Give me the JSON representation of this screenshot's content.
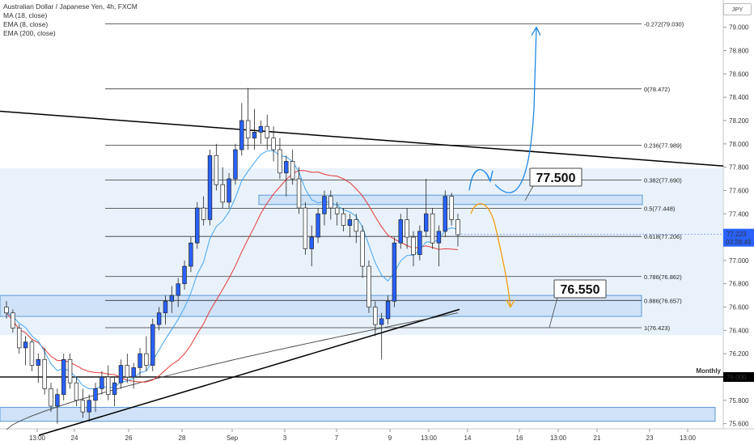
{
  "legend": {
    "title": "Australian Dollar / Japanese Yen, 4h, FXCM",
    "indicators": [
      "MA (18, close)",
      "EMA (8, close)",
      "EMA (200, close)"
    ]
  },
  "currency_badge": "JPY",
  "colors": {
    "bull": "#2962ff",
    "bear": "#ffffff",
    "ma18": "#e53935",
    "ema8": "#42a5f5",
    "ema200": "#424242",
    "zone_fill": "#cfe2f7",
    "zone_stroke": "#5b9bd5",
    "arrow_up": "#1e88e5",
    "arrow_down": "#f59e0b",
    "price_tag": "#2962ff"
  },
  "chart_data": {
    "type": "candlestick",
    "ylim": [
      75.5,
      79.13
    ],
    "y_ticks": [
      "79.000",
      "78.800",
      "78.600",
      "78.400",
      "78.200",
      "78.000",
      "77.800",
      "77.600",
      "77.400",
      "77.200",
      "77.000",
      "76.800",
      "76.600",
      "76.400",
      "76.200",
      "76.000",
      "75.800",
      "75.600"
    ],
    "x_ticks": [
      "13:00",
      "24",
      "26",
      "28",
      "Sep",
      "3",
      "7",
      "9",
      "13:00",
      "14",
      "16",
      "13:00",
      "21",
      "23",
      "13:00"
    ],
    "fib_levels": [
      {
        "label": "-0.272(79.030)",
        "price": 79.03
      },
      {
        "label": "0(78.472)",
        "price": 78.472
      },
      {
        "label": "0.236(77.989)",
        "price": 77.989
      },
      {
        "label": "0.382(77.690)",
        "price": 77.69
      },
      {
        "label": "0.5(77.448)",
        "price": 77.448
      },
      {
        "label": "0.618(77.206)",
        "price": 77.206
      },
      {
        "label": "0.786(76.862)",
        "price": 76.862
      },
      {
        "label": "0.886(76.657)",
        "price": 76.657
      },
      {
        "label": "1(76.423)",
        "price": 76.423
      }
    ],
    "annotations": [
      {
        "label": "77.500",
        "price": 77.5
      },
      {
        "label": "76.550",
        "price": 76.55
      }
    ],
    "monthly_level": {
      "label": "Monthly",
      "price": 76.0,
      "price_label": "76.000"
    },
    "current_price": {
      "price_label": "77.223",
      "countdown": "03:28:49",
      "price": 77.223
    },
    "candles": [
      [
        76.6,
        76.65,
        76.5,
        76.55
      ],
      [
        76.55,
        76.58,
        76.38,
        76.42
      ],
      [
        76.42,
        76.45,
        76.2,
        76.25
      ],
      [
        76.25,
        76.35,
        76.1,
        76.3
      ],
      [
        76.3,
        76.32,
        76.05,
        76.1
      ],
      [
        76.1,
        76.2,
        75.95,
        76.15
      ],
      [
        76.15,
        76.25,
        75.85,
        75.9
      ],
      [
        75.9,
        75.95,
        75.7,
        75.75
      ],
      [
        75.75,
        75.9,
        75.6,
        75.85
      ],
      [
        75.85,
        76.2,
        75.8,
        76.15
      ],
      [
        76.15,
        76.2,
        75.9,
        75.95
      ],
      [
        75.95,
        76.0,
        75.75,
        75.8
      ],
      [
        75.8,
        75.9,
        75.65,
        75.7
      ],
      [
        75.7,
        75.85,
        75.62,
        75.8
      ],
      [
        75.8,
        75.95,
        75.7,
        75.9
      ],
      [
        75.9,
        76.05,
        75.85,
        76.0
      ],
      [
        76.0,
        76.1,
        75.8,
        75.85
      ],
      [
        75.85,
        76.0,
        75.75,
        75.95
      ],
      [
        75.95,
        76.15,
        75.9,
        76.1
      ],
      [
        76.1,
        76.2,
        75.95,
        76.0
      ],
      [
        76.0,
        76.12,
        75.9,
        76.08
      ],
      [
        76.08,
        76.25,
        76.0,
        76.2
      ],
      [
        76.2,
        76.35,
        76.05,
        76.1
      ],
      [
        76.1,
        76.5,
        76.05,
        76.45
      ],
      [
        76.45,
        76.6,
        76.4,
        76.55
      ],
      [
        76.55,
        76.7,
        76.45,
        76.65
      ],
      [
        76.65,
        76.78,
        76.55,
        76.7
      ],
      [
        76.7,
        76.85,
        76.6,
        76.8
      ],
      [
        76.8,
        77.0,
        76.75,
        76.95
      ],
      [
        76.95,
        77.2,
        76.9,
        77.15
      ],
      [
        77.15,
        77.5,
        77.1,
        77.45
      ],
      [
        77.45,
        77.55,
        77.3,
        77.35
      ],
      [
        77.35,
        77.95,
        77.3,
        77.9
      ],
      [
        77.9,
        78.0,
        77.6,
        77.65
      ],
      [
        77.65,
        77.8,
        77.45,
        77.5
      ],
      [
        77.5,
        77.75,
        77.45,
        77.7
      ],
      [
        77.7,
        78.0,
        77.65,
        77.95
      ],
      [
        77.95,
        78.35,
        77.9,
        78.2
      ],
      [
        78.2,
        78.48,
        77.95,
        78.05
      ],
      [
        78.05,
        78.3,
        77.95,
        78.1
      ],
      [
        78.1,
        78.2,
        78.0,
        78.15
      ],
      [
        78.15,
        78.25,
        77.95,
        78.05
      ],
      [
        78.05,
        78.15,
        77.85,
        77.95
      ],
      [
        77.95,
        78.05,
        77.7,
        77.75
      ],
      [
        77.75,
        77.9,
        77.55,
        77.85
      ],
      [
        77.85,
        77.95,
        77.65,
        77.7
      ],
      [
        77.7,
        77.8,
        77.4,
        77.45
      ],
      [
        77.45,
        77.5,
        77.05,
        77.1
      ],
      [
        77.1,
        77.3,
        76.95,
        77.2
      ],
      [
        77.2,
        77.45,
        77.15,
        77.4
      ],
      [
        77.4,
        77.6,
        77.3,
        77.55
      ],
      [
        77.55,
        77.6,
        77.35,
        77.45
      ],
      [
        77.45,
        77.5,
        77.3,
        77.4
      ],
      [
        77.4,
        77.45,
        77.25,
        77.3
      ],
      [
        77.3,
        77.4,
        77.2,
        77.35
      ],
      [
        77.35,
        77.4,
        77.15,
        77.25
      ],
      [
        77.25,
        77.3,
        76.85,
        76.95
      ],
      [
        76.95,
        77.0,
        76.55,
        76.6
      ],
      [
        76.6,
        76.65,
        76.35,
        76.45
      ],
      [
        76.45,
        76.55,
        76.15,
        76.5
      ],
      [
        76.5,
        76.7,
        76.45,
        76.65
      ],
      [
        76.65,
        77.2,
        76.6,
        77.15
      ],
      [
        77.15,
        77.4,
        77.1,
        77.35
      ],
      [
        77.35,
        77.45,
        77.1,
        77.2
      ],
      [
        77.2,
        77.25,
        76.95,
        77.05
      ],
      [
        77.05,
        77.3,
        77.0,
        77.25
      ],
      [
        77.25,
        77.7,
        77.2,
        77.4
      ],
      [
        77.4,
        77.45,
        77.1,
        77.15
      ],
      [
        77.15,
        77.3,
        76.95,
        77.25
      ],
      [
        77.25,
        77.6,
        77.2,
        77.55
      ],
      [
        77.55,
        77.58,
        77.3,
        77.35
      ],
      [
        77.35,
        77.4,
        77.12,
        77.22
      ]
    ]
  }
}
